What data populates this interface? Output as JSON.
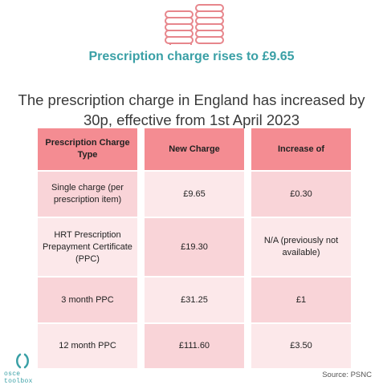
{
  "icon": "coin-stack-icon",
  "colors": {
    "accent_teal": "#3aa0a6",
    "header_pink": "#f48c92",
    "row_pink_dark": "#f9d4d8",
    "row_pink_light": "#fce8ea",
    "coin_pink": "#e7868c"
  },
  "headline": "Prescription charge rises to £9.65",
  "subheading": "The prescription charge in England has increased by 30p, effective from 1st April 2023",
  "table": {
    "headers": [
      "Prescription Charge Type",
      "New Charge",
      "Increase of"
    ],
    "rows": [
      [
        "Single charge (per prescription item)",
        "£9.65",
        "£0.30"
      ],
      [
        "HRT Prescription Prepayment Certificate (PPC)",
        "£19.30",
        "N/A (previously not available)"
      ],
      [
        "3 month PPC",
        "£31.25",
        "£1"
      ],
      [
        "12 month PPC",
        "£111.60",
        "£3.50"
      ]
    ]
  },
  "logo": {
    "icon": "open-bracket-icon",
    "text": "osce toolbox"
  },
  "source": "Source: PSNC"
}
